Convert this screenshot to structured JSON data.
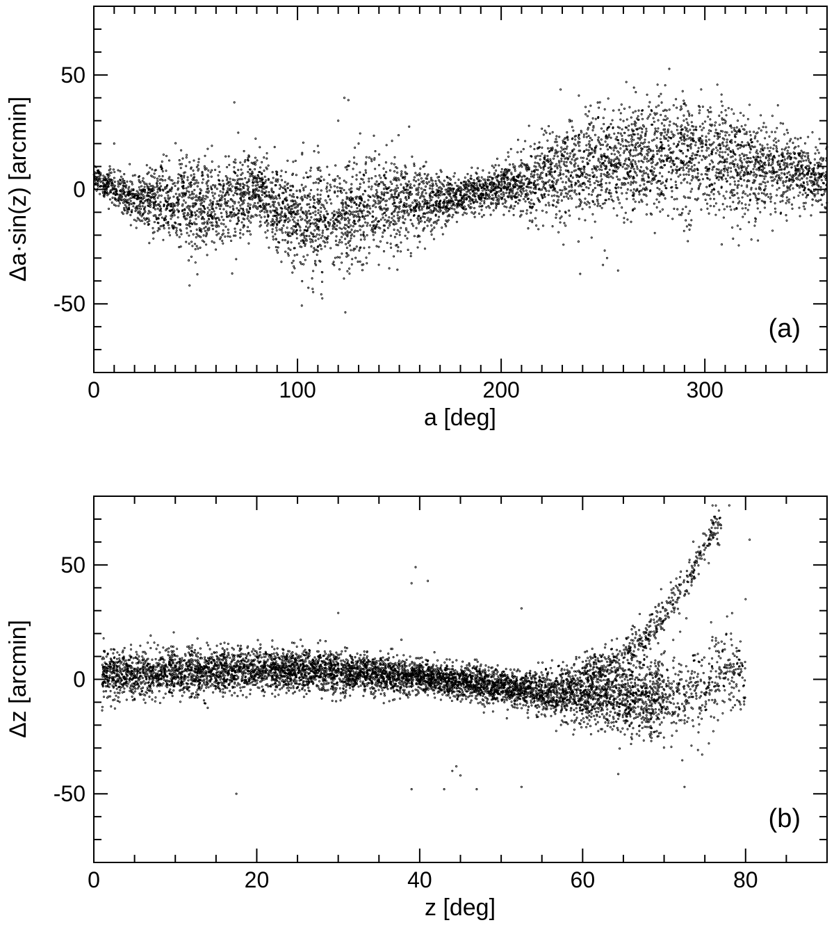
{
  "chart_data": [
    {
      "type": "scatter",
      "panel_label": "(a)",
      "xlabel": "a [deg]",
      "ylabel": "Δa·sin(z) [arcmin]",
      "xlim": [
        0,
        360
      ],
      "ylim": [
        -80,
        80
      ],
      "x_ticks": [
        "0",
        "100",
        "200",
        "300"
      ],
      "y_ticks": [
        "-50",
        "0",
        "50"
      ],
      "x_tick_values": [
        0,
        100,
        200,
        300
      ],
      "y_tick_values": [
        -50,
        0,
        50
      ],
      "marker_color": "#000000",
      "grid": false,
      "legend": "none",
      "trend": [
        {
          "x": 0,
          "y": 5,
          "spread": 4
        },
        {
          "x": 20,
          "y": -5,
          "spread": 6
        },
        {
          "x": 40,
          "y": -5,
          "spread": 13
        },
        {
          "x": 60,
          "y": -8,
          "spread": 14
        },
        {
          "x": 80,
          "y": 0,
          "spread": 10
        },
        {
          "x": 100,
          "y": -15,
          "spread": 15
        },
        {
          "x": 120,
          "y": -12,
          "spread": 15
        },
        {
          "x": 140,
          "y": -5,
          "spread": 14
        },
        {
          "x": 160,
          "y": -6,
          "spread": 11
        },
        {
          "x": 180,
          "y": -3,
          "spread": 5
        },
        {
          "x": 200,
          "y": 1,
          "spread": 6
        },
        {
          "x": 220,
          "y": 5,
          "spread": 12
        },
        {
          "x": 240,
          "y": 10,
          "spread": 15
        },
        {
          "x": 260,
          "y": 13,
          "spread": 16
        },
        {
          "x": 280,
          "y": 15,
          "spread": 17
        },
        {
          "x": 300,
          "y": 13,
          "spread": 17
        },
        {
          "x": 320,
          "y": 10,
          "spread": 14
        },
        {
          "x": 340,
          "y": 8,
          "spread": 11
        },
        {
          "x": 360,
          "y": 5,
          "spread": 8
        }
      ],
      "outliers": [
        [
          69,
          38
        ],
        [
          123,
          40
        ],
        [
          125,
          39
        ],
        [
          120,
          30
        ],
        [
          110,
          19
        ],
        [
          130,
          20
        ],
        [
          252,
          -30
        ],
        [
          250,
          -33
        ],
        [
          47,
          -42
        ],
        [
          10,
          20
        ]
      ],
      "n_points": 6000
    },
    {
      "type": "scatter",
      "panel_label": "(b)",
      "xlabel": "z [deg]",
      "ylabel": "Δz [arcmin]",
      "xlim": [
        0,
        90
      ],
      "ylim": [
        -80,
        80
      ],
      "x_ticks": [
        "0",
        "20",
        "40",
        "60",
        "80"
      ],
      "y_ticks": [
        "-50",
        "0",
        "50"
      ],
      "x_tick_values": [
        0,
        20,
        40,
        60,
        80
      ],
      "y_tick_values": [
        -50,
        0,
        50
      ],
      "marker_color": "#000000",
      "grid": false,
      "legend": "none",
      "trend": [
        {
          "x": 1,
          "y": 2,
          "spread": 7
        },
        {
          "x": 10,
          "y": 3,
          "spread": 7
        },
        {
          "x": 20,
          "y": 4,
          "spread": 6
        },
        {
          "x": 30,
          "y": 3,
          "spread": 6
        },
        {
          "x": 40,
          "y": 1,
          "spread": 5
        },
        {
          "x": 50,
          "y": -3,
          "spread": 5
        },
        {
          "x": 55,
          "y": -6,
          "spread": 6
        },
        {
          "x": 60,
          "y": -6,
          "spread": 9
        },
        {
          "x": 65,
          "y": -8,
          "spread": 11
        },
        {
          "x": 70,
          "y": -8,
          "spread": 12
        },
        {
          "x": 75,
          "y": -5,
          "spread": 14
        },
        {
          "x": 78,
          "y": 5,
          "spread": 12
        }
      ],
      "upper_branch": [
        {
          "x": 60,
          "y": 2
        },
        {
          "x": 65,
          "y": 10
        },
        {
          "x": 70,
          "y": 28
        },
        {
          "x": 73,
          "y": 45
        },
        {
          "x": 76,
          "y": 65
        }
      ],
      "outliers": [
        [
          39.5,
          49
        ],
        [
          41,
          43
        ],
        [
          39,
          42
        ],
        [
          30,
          29
        ],
        [
          52.5,
          31
        ],
        [
          44.5,
          -38
        ],
        [
          45,
          -42
        ],
        [
          44,
          -40
        ],
        [
          39,
          -48
        ],
        [
          43,
          -48
        ],
        [
          47,
          -48
        ],
        [
          17.5,
          -50
        ],
        [
          72.5,
          -47
        ],
        [
          52.5,
          -47
        ],
        [
          75.5,
          -28
        ],
        [
          80.5,
          61
        ],
        [
          78,
          76
        ],
        [
          80,
          35
        ]
      ],
      "n_points": 6500
    }
  ]
}
